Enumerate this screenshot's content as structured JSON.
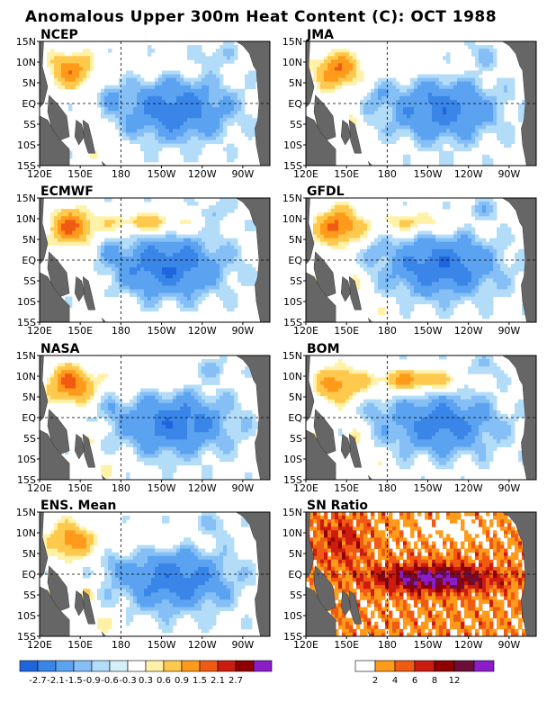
{
  "figure_title": "Anomalous Upper 300m Heat Content (C): OCT 1988",
  "colors": {
    "land": "#666666",
    "frame": "#000000",
    "neg": [
      "#1f66dd",
      "#3a86e8",
      "#5ba3f0",
      "#85bff5",
      "#b2dcf8",
      "#d4f0fb"
    ],
    "pos": [
      "#fff2a8",
      "#ffc94d",
      "#ff9a1a",
      "#f05a12",
      "#cc1c10",
      "#900000",
      "#8a1dc9"
    ],
    "sn": [
      "#ffffff",
      "#ff9a1a",
      "#f05a12",
      "#cc1c10",
      "#900000",
      "#6d0d3a",
      "#8a1dc9"
    ]
  },
  "chart_data": [
    {
      "type": "heatmap",
      "title": "NCEP",
      "xticks": [
        "120E",
        "150E",
        "180",
        "150W",
        "120W",
        "90W"
      ],
      "yticks": [
        "15N",
        "10N",
        "5N",
        "EQ",
        "5S",
        "10S",
        "15S"
      ],
      "xlim": [
        "120E",
        "70W"
      ],
      "ylim": [
        "15S",
        "15N"
      ],
      "features": {
        "west_warm": 1.9,
        "cold_tongue": -1.9,
        "north_band": 0.3,
        "cold_lon": "140W"
      }
    },
    {
      "type": "heatmap",
      "title": "JMA",
      "xticks": [
        "120E",
        "150E",
        "180",
        "150W",
        "120W",
        "90W"
      ],
      "yticks": [
        "15N",
        "10N",
        "5N",
        "EQ",
        "5S",
        "10S",
        "15S"
      ],
      "xlim": [
        "120E",
        "70W"
      ],
      "ylim": [
        "15S",
        "15N"
      ],
      "features": {
        "west_warm": 2.1,
        "cold_tongue": -1.8,
        "north_band": 0.4,
        "cold_lon": "140W"
      }
    },
    {
      "type": "heatmap",
      "title": "ECMWF",
      "xticks": [
        "120E",
        "150E",
        "180",
        "150W",
        "120W",
        "90W"
      ],
      "yticks": [
        "15N",
        "10N",
        "5N",
        "EQ",
        "5S",
        "10S",
        "15S"
      ],
      "xlim": [
        "120E",
        "70W"
      ],
      "ylim": [
        "15S",
        "15N"
      ],
      "features": {
        "west_warm": 2.2,
        "cold_tongue": -2.0,
        "north_band": 1.4,
        "cold_lon": "145W"
      }
    },
    {
      "type": "heatmap",
      "title": "GFDL",
      "xticks": [
        "120E",
        "150E",
        "180",
        "150W",
        "120W",
        "90W"
      ],
      "yticks": [
        "15N",
        "10N",
        "5N",
        "EQ",
        "5S",
        "10S",
        "15S"
      ],
      "xlim": [
        "120E",
        "70W"
      ],
      "ylim": [
        "15S",
        "15N"
      ],
      "features": {
        "west_warm": 2.3,
        "cold_tongue": -2.0,
        "north_band": 1.1,
        "cold_lon": "140W"
      }
    },
    {
      "type": "heatmap",
      "title": "NASA",
      "xticks": [
        "120E",
        "150E",
        "180",
        "150W",
        "120W",
        "90W"
      ],
      "yticks": [
        "15N",
        "10N",
        "5N",
        "EQ",
        "5S",
        "10S",
        "15S"
      ],
      "xlim": [
        "120E",
        "70W"
      ],
      "ylim": [
        "15S",
        "15N"
      ],
      "features": {
        "west_warm": 2.3,
        "cold_tongue": -1.9,
        "north_band": 0.5,
        "cold_lon": "140W"
      }
    },
    {
      "type": "heatmap",
      "title": "BOM",
      "xticks": [
        "120E",
        "150E",
        "180",
        "150W",
        "120W",
        "90W"
      ],
      "yticks": [
        "15N",
        "10N",
        "5N",
        "EQ",
        "5S",
        "10S",
        "15S"
      ],
      "xlim": [
        "120E",
        "70W"
      ],
      "ylim": [
        "15S",
        "15N"
      ],
      "features": {
        "west_warm": 1.8,
        "cold_tongue": -1.8,
        "north_band": 1.8,
        "cold_lon": "140W"
      }
    },
    {
      "type": "heatmap",
      "title": "ENS. Mean",
      "xticks": [
        "120E",
        "150E",
        "180",
        "150W",
        "120W",
        "90W"
      ],
      "yticks": [
        "15N",
        "10N",
        "5N",
        "EQ",
        "5S",
        "10S",
        "15S"
      ],
      "xlim": [
        "120E",
        "70W"
      ],
      "ylim": [
        "15S",
        "15N"
      ],
      "features": {
        "west_warm": 1.9,
        "cold_tongue": -1.9,
        "north_band": 0.6,
        "cold_lon": "140W"
      }
    },
    {
      "type": "heatmap",
      "title": "SN Ratio",
      "xticks": [
        "120E",
        "150E",
        "180",
        "150W",
        "120W",
        "90W"
      ],
      "yticks": [
        "15N",
        "10N",
        "5N",
        "EQ",
        "5S",
        "10S",
        "15S"
      ],
      "xlim": [
        "120E",
        "70W"
      ],
      "ylim": [
        "15S",
        "15N"
      ],
      "features": {
        "equatorial_max": 13,
        "background": 3
      }
    }
  ],
  "colorbars": {
    "anomaly": {
      "labels": [
        "-2.7",
        "-2.1",
        "-1.5",
        "-0.9",
        "-0.6",
        "-0.3",
        "0.3",
        "0.6",
        "0.9",
        "1.5",
        "2.1",
        "2.7"
      ]
    },
    "sn": {
      "labels": [
        "2",
        "4",
        "6",
        "8",
        "12"
      ]
    }
  }
}
